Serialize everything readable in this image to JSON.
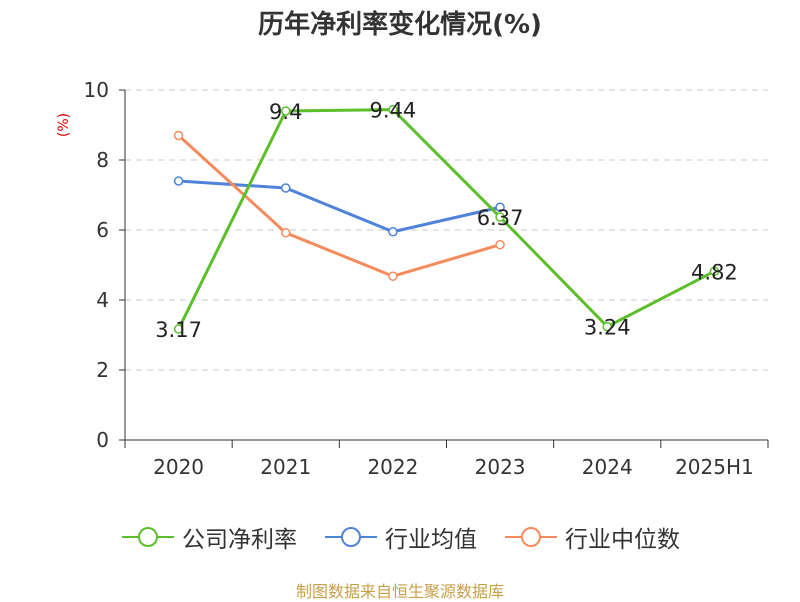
{
  "title": "历年净利率变化情况(%)",
  "source": "制图数据来自恒生聚源数据库",
  "chart_data": {
    "type": "line",
    "title": "历年净利率变化情况(%)",
    "ylabel": "(%)",
    "ylim": [
      0,
      10
    ],
    "yticks": [
      0,
      2,
      4,
      6,
      8,
      10
    ],
    "categories": [
      "2020",
      "2021",
      "2022",
      "2023",
      "2024",
      "2025H1"
    ],
    "grid": true,
    "legend_position": "bottom",
    "series": [
      {
        "name": "公司净利率",
        "color": "#5cbf2a",
        "values": [
          3.17,
          9.4,
          9.44,
          6.37,
          3.24,
          4.82
        ],
        "labels": [
          "3.17",
          "9.4",
          "9.44",
          "6.37",
          "3.24",
          "4.82"
        ]
      },
      {
        "name": "行业均值",
        "color": "#4e82db",
        "values": [
          7.4,
          7.2,
          5.95,
          6.65,
          null,
          null
        ]
      },
      {
        "name": "行业中位数",
        "color": "#f58b5c",
        "values": [
          8.7,
          5.92,
          4.68,
          5.58,
          null,
          null
        ]
      }
    ]
  }
}
